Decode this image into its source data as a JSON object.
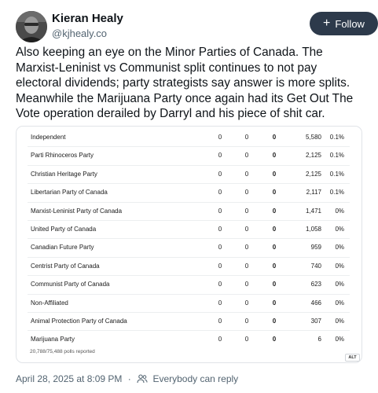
{
  "author": {
    "name": "Kieran Healy",
    "handle": "@kjhealy.co"
  },
  "follow_label": "Follow",
  "post_text": "Also keeping an eye on the Minor Parties of Canada. The Marxist-Leninist vs Communist split continues to not pay electoral dividends; party strategists say answer is more splits. Meanwhile the Marijuana Party once again had its Get Out The Vote operation derailed by Darryl and his piece of shit car.",
  "image": {
    "rows": [
      {
        "party": "Independent",
        "c1": "0",
        "c2": "0",
        "c3": "0",
        "votes": "5,580",
        "pct": "0.1%"
      },
      {
        "party": "Parti Rhinoceros Party",
        "c1": "0",
        "c2": "0",
        "c3": "0",
        "votes": "2,125",
        "pct": "0.1%"
      },
      {
        "party": "Christian Heritage Party",
        "c1": "0",
        "c2": "0",
        "c3": "0",
        "votes": "2,125",
        "pct": "0.1%"
      },
      {
        "party": "Libertarian Party of Canada",
        "c1": "0",
        "c2": "0",
        "c3": "0",
        "votes": "2,117",
        "pct": "0.1%"
      },
      {
        "party": "Marxist-Leninist Party of Canada",
        "c1": "0",
        "c2": "0",
        "c3": "0",
        "votes": "1,471",
        "pct": "0%"
      },
      {
        "party": "United Party of Canada",
        "c1": "0",
        "c2": "0",
        "c3": "0",
        "votes": "1,058",
        "pct": "0%"
      },
      {
        "party": "Canadian Future Party",
        "c1": "0",
        "c2": "0",
        "c3": "0",
        "votes": "959",
        "pct": "0%"
      },
      {
        "party": "Centrist Party of Canada",
        "c1": "0",
        "c2": "0",
        "c3": "0",
        "votes": "740",
        "pct": "0%"
      },
      {
        "party": "Communist Party of Canada",
        "c1": "0",
        "c2": "0",
        "c3": "0",
        "votes": "623",
        "pct": "0%"
      },
      {
        "party": "Non-Affiliated",
        "c1": "0",
        "c2": "0",
        "c3": "0",
        "votes": "466",
        "pct": "0%"
      },
      {
        "party": "Animal Protection Party of Canada",
        "c1": "0",
        "c2": "0",
        "c3": "0",
        "votes": "307",
        "pct": "0%"
      },
      {
        "party": "Marijuana Party",
        "c1": "0",
        "c2": "0",
        "c3": "0",
        "votes": "6",
        "pct": "0%"
      }
    ],
    "polls_reported": "20,788/75,488 polls reported",
    "alt_badge": "ALT"
  },
  "footer": {
    "timestamp": "April 28, 2025 at 8:09 PM",
    "separator": "·",
    "reply_setting": "Everybody can reply"
  },
  "colors": {
    "follow_button": "#2d3a4b",
    "secondary_text": "#536471",
    "primary_text": "#0f1419"
  },
  "icons": {
    "avatar": "avatar-photo",
    "follow": "plus-icon",
    "reply_setting": "people-icon"
  }
}
